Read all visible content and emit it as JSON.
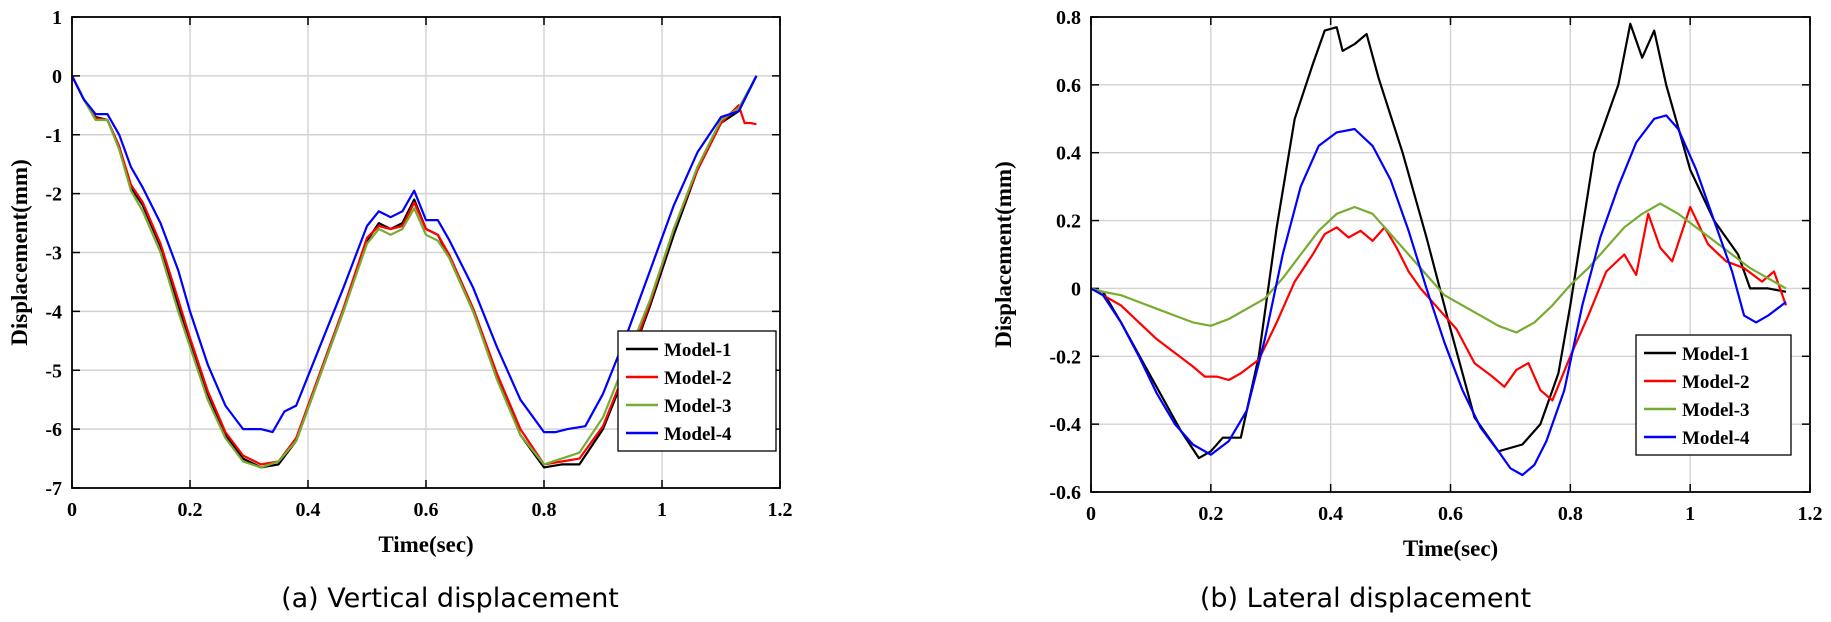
{
  "captions": {
    "a": "(a) Vertical displacement",
    "b": "(b) Lateral displacement"
  },
  "chart_data": [
    {
      "type": "line",
      "xlabel": "Time(sec)",
      "ylabel": "Displacement(mm)",
      "xlim": [
        0,
        1.2
      ],
      "ylim": [
        -7,
        1
      ],
      "xticks": [
        0,
        0.2,
        0.4,
        0.6,
        0.8,
        1,
        1.2
      ],
      "xtick_labels": [
        "0",
        "0.2",
        "0.4",
        "0.6",
        "0.8",
        "1",
        "1.2"
      ],
      "yticks": [
        -7,
        -6,
        -5,
        -4,
        -3,
        -2,
        -1,
        0,
        1
      ],
      "ytick_labels": [
        "-7",
        "-6",
        "-5",
        "-4",
        "-3",
        "-2",
        "-1",
        "0",
        "1"
      ],
      "grid": true,
      "legend_position": "lower-right",
      "series": [
        {
          "name": "Model-1",
          "color": "#000000",
          "x": [
            0,
            0.02,
            0.04,
            0.06,
            0.08,
            0.1,
            0.12,
            0.15,
            0.18,
            0.2,
            0.23,
            0.26,
            0.29,
            0.32,
            0.35,
            0.38,
            0.42,
            0.46,
            0.5,
            0.52,
            0.54,
            0.56,
            0.58,
            0.6,
            0.62,
            0.64,
            0.68,
            0.72,
            0.76,
            0.8,
            0.83,
            0.86,
            0.9,
            0.94,
            0.98,
            1.02,
            1.06,
            1.1,
            1.13,
            1.16
          ],
          "y": [
            0,
            -0.4,
            -0.7,
            -0.75,
            -1.2,
            -1.9,
            -2.2,
            -2.9,
            -3.9,
            -4.5,
            -5.4,
            -6.1,
            -6.5,
            -6.65,
            -6.6,
            -6.2,
            -5.1,
            -4.0,
            -2.8,
            -2.5,
            -2.6,
            -2.5,
            -2.1,
            -2.6,
            -2.7,
            -3.1,
            -4.0,
            -5.1,
            -6.1,
            -6.65,
            -6.6,
            -6.6,
            -6.0,
            -5.0,
            -3.9,
            -2.7,
            -1.6,
            -0.8,
            -0.6,
            0.0
          ]
        },
        {
          "name": "Model-2",
          "color": "#ff0000",
          "x": [
            0,
            0.02,
            0.04,
            0.06,
            0.08,
            0.1,
            0.12,
            0.15,
            0.18,
            0.2,
            0.23,
            0.26,
            0.29,
            0.32,
            0.35,
            0.38,
            0.42,
            0.46,
            0.5,
            0.52,
            0.54,
            0.56,
            0.58,
            0.6,
            0.62,
            0.64,
            0.68,
            0.72,
            0.76,
            0.8,
            0.83,
            0.86,
            0.9,
            0.94,
            0.98,
            1.02,
            1.06,
            1.1,
            1.13,
            1.14,
            1.15,
            1.16
          ],
          "y": [
            0,
            -0.4,
            -0.72,
            -0.75,
            -1.2,
            -1.85,
            -2.15,
            -2.85,
            -3.8,
            -4.45,
            -5.35,
            -6.05,
            -6.45,
            -6.6,
            -6.55,
            -6.15,
            -5.05,
            -3.95,
            -2.75,
            -2.55,
            -2.6,
            -2.55,
            -2.15,
            -2.6,
            -2.7,
            -3.05,
            -3.95,
            -5.05,
            -6.0,
            -6.6,
            -6.55,
            -6.5,
            -5.95,
            -4.95,
            -3.85,
            -2.6,
            -1.6,
            -0.8,
            -0.5,
            -0.8,
            -0.8,
            -0.82
          ]
        },
        {
          "name": "Model-3",
          "color": "#77ac30",
          "x": [
            0,
            0.02,
            0.04,
            0.06,
            0.08,
            0.1,
            0.12,
            0.15,
            0.18,
            0.2,
            0.23,
            0.26,
            0.29,
            0.32,
            0.35,
            0.38,
            0.42,
            0.46,
            0.5,
            0.52,
            0.54,
            0.56,
            0.58,
            0.6,
            0.62,
            0.64,
            0.68,
            0.72,
            0.76,
            0.8,
            0.83,
            0.86,
            0.9,
            0.94,
            0.98,
            1.02,
            1.06,
            1.1,
            1.13,
            1.16
          ],
          "y": [
            0,
            -0.4,
            -0.75,
            -0.75,
            -1.25,
            -1.95,
            -2.3,
            -3.0,
            -4.0,
            -4.6,
            -5.5,
            -6.15,
            -6.55,
            -6.65,
            -6.55,
            -6.2,
            -5.1,
            -4.0,
            -2.85,
            -2.6,
            -2.7,
            -2.6,
            -2.25,
            -2.7,
            -2.8,
            -3.1,
            -4.0,
            -5.15,
            -6.1,
            -6.6,
            -6.5,
            -6.4,
            -5.8,
            -4.8,
            -3.8,
            -2.6,
            -1.55,
            -0.75,
            -0.55,
            0.0
          ]
        },
        {
          "name": "Model-4",
          "color": "#0000ff",
          "x": [
            0,
            0.02,
            0.04,
            0.06,
            0.08,
            0.1,
            0.12,
            0.15,
            0.18,
            0.2,
            0.23,
            0.26,
            0.29,
            0.32,
            0.34,
            0.36,
            0.38,
            0.42,
            0.46,
            0.5,
            0.52,
            0.54,
            0.56,
            0.58,
            0.6,
            0.62,
            0.64,
            0.68,
            0.72,
            0.76,
            0.8,
            0.82,
            0.84,
            0.87,
            0.9,
            0.94,
            0.98,
            1.02,
            1.06,
            1.1,
            1.13,
            1.16
          ],
          "y": [
            0,
            -0.4,
            -0.65,
            -0.65,
            -1.0,
            -1.55,
            -1.9,
            -2.5,
            -3.3,
            -4.0,
            -4.9,
            -5.6,
            -6.0,
            -6.0,
            -6.05,
            -5.7,
            -5.6,
            -4.6,
            -3.6,
            -2.55,
            -2.3,
            -2.4,
            -2.3,
            -1.95,
            -2.45,
            -2.45,
            -2.8,
            -3.6,
            -4.6,
            -5.5,
            -6.05,
            -6.05,
            -6.0,
            -5.95,
            -5.4,
            -4.4,
            -3.3,
            -2.2,
            -1.3,
            -0.7,
            -0.6,
            0.0
          ]
        }
      ]
    },
    {
      "type": "line",
      "xlabel": "Time(sec)",
      "ylabel": "Displacement(mm)",
      "xlim": [
        0,
        1.2
      ],
      "ylim": [
        -0.6,
        0.8
      ],
      "xticks": [
        0,
        0.2,
        0.4,
        0.6,
        0.8,
        1,
        1.2
      ],
      "xtick_labels": [
        "0",
        "0.2",
        "0.4",
        "0.6",
        "0.8",
        "1",
        "1.2"
      ],
      "yticks": [
        -0.6,
        -0.4,
        -0.2,
        0,
        0.2,
        0.4,
        0.6,
        0.8
      ],
      "ytick_labels": [
        "-0.6",
        "-0.4",
        "-0.2",
        "0",
        "0.2",
        "0.4",
        "0.6",
        "0.8"
      ],
      "grid": true,
      "legend_position": "lower-right",
      "series": [
        {
          "name": "Model-1",
          "color": "#000000",
          "x": [
            0,
            0.02,
            0.05,
            0.1,
            0.15,
            0.18,
            0.2,
            0.22,
            0.25,
            0.28,
            0.31,
            0.34,
            0.37,
            0.39,
            0.41,
            0.42,
            0.44,
            0.46,
            0.48,
            0.52,
            0.56,
            0.6,
            0.64,
            0.68,
            0.72,
            0.75,
            0.78,
            0.8,
            0.84,
            0.88,
            0.9,
            0.92,
            0.94,
            0.96,
            1.0,
            1.04,
            1.08,
            1.1,
            1.13,
            1.16
          ],
          "y": [
            0,
            -0.01,
            -0.1,
            -0.26,
            -0.42,
            -0.5,
            -0.48,
            -0.44,
            -0.44,
            -0.2,
            0.18,
            0.5,
            0.66,
            0.76,
            0.77,
            0.7,
            0.72,
            0.75,
            0.62,
            0.4,
            0.15,
            -0.12,
            -0.38,
            -0.48,
            -0.46,
            -0.4,
            -0.25,
            -0.05,
            0.4,
            0.6,
            0.78,
            0.68,
            0.76,
            0.6,
            0.35,
            0.2,
            0.1,
            0.0,
            0.0,
            -0.01
          ]
        },
        {
          "name": "Model-2",
          "color": "#ff0000",
          "x": [
            0,
            0.02,
            0.05,
            0.08,
            0.11,
            0.14,
            0.17,
            0.19,
            0.21,
            0.23,
            0.25,
            0.28,
            0.31,
            0.34,
            0.37,
            0.39,
            0.41,
            0.43,
            0.45,
            0.47,
            0.49,
            0.51,
            0.53,
            0.55,
            0.58,
            0.61,
            0.64,
            0.67,
            0.69,
            0.71,
            0.73,
            0.75,
            0.77,
            0.8,
            0.83,
            0.86,
            0.89,
            0.91,
            0.93,
            0.95,
            0.97,
            1.0,
            1.03,
            1.06,
            1.09,
            1.12,
            1.14,
            1.16
          ],
          "y": [
            0,
            -0.02,
            -0.05,
            -0.1,
            -0.15,
            -0.19,
            -0.23,
            -0.26,
            -0.26,
            -0.27,
            -0.25,
            -0.21,
            -0.1,
            0.02,
            0.1,
            0.16,
            0.18,
            0.15,
            0.17,
            0.14,
            0.18,
            0.12,
            0.05,
            0.0,
            -0.06,
            -0.12,
            -0.22,
            -0.26,
            -0.29,
            -0.24,
            -0.22,
            -0.3,
            -0.33,
            -0.2,
            -0.08,
            0.05,
            0.1,
            0.04,
            0.22,
            0.12,
            0.08,
            0.24,
            0.13,
            0.08,
            0.06,
            0.02,
            0.05,
            -0.05
          ]
        },
        {
          "name": "Model-3",
          "color": "#77ac30",
          "x": [
            0,
            0.02,
            0.05,
            0.08,
            0.11,
            0.14,
            0.17,
            0.2,
            0.23,
            0.26,
            0.29,
            0.32,
            0.35,
            0.38,
            0.41,
            0.44,
            0.47,
            0.5,
            0.53,
            0.56,
            0.59,
            0.62,
            0.65,
            0.68,
            0.71,
            0.74,
            0.77,
            0.8,
            0.83,
            0.86,
            0.89,
            0.92,
            0.95,
            0.98,
            1.01,
            1.04,
            1.07,
            1.1,
            1.13,
            1.16
          ],
          "y": [
            0,
            -0.01,
            -0.02,
            -0.04,
            -0.06,
            -0.08,
            -0.1,
            -0.11,
            -0.09,
            -0.06,
            -0.03,
            0.03,
            0.1,
            0.17,
            0.22,
            0.24,
            0.22,
            0.16,
            0.1,
            0.04,
            -0.02,
            -0.05,
            -0.08,
            -0.11,
            -0.13,
            -0.1,
            -0.05,
            0.01,
            0.06,
            0.12,
            0.18,
            0.22,
            0.25,
            0.22,
            0.18,
            0.14,
            0.1,
            0.06,
            0.03,
            0.0
          ]
        },
        {
          "name": "Model-4",
          "color": "#0000ff",
          "x": [
            0,
            0.02,
            0.05,
            0.08,
            0.11,
            0.14,
            0.17,
            0.2,
            0.23,
            0.26,
            0.29,
            0.32,
            0.35,
            0.38,
            0.41,
            0.44,
            0.47,
            0.5,
            0.53,
            0.56,
            0.59,
            0.62,
            0.65,
            0.68,
            0.7,
            0.72,
            0.74,
            0.76,
            0.79,
            0.82,
            0.85,
            0.88,
            0.91,
            0.94,
            0.96,
            0.98,
            1.01,
            1.04,
            1.07,
            1.09,
            1.11,
            1.13,
            1.16
          ],
          "y": [
            0,
            -0.02,
            -0.1,
            -0.2,
            -0.31,
            -0.4,
            -0.46,
            -0.49,
            -0.45,
            -0.36,
            -0.15,
            0.1,
            0.3,
            0.42,
            0.46,
            0.47,
            0.42,
            0.32,
            0.17,
            0.0,
            -0.16,
            -0.3,
            -0.41,
            -0.48,
            -0.53,
            -0.55,
            -0.52,
            -0.45,
            -0.3,
            -0.05,
            0.15,
            0.3,
            0.43,
            0.5,
            0.51,
            0.47,
            0.35,
            0.2,
            0.05,
            -0.08,
            -0.1,
            -0.08,
            -0.04
          ]
        }
      ]
    }
  ]
}
